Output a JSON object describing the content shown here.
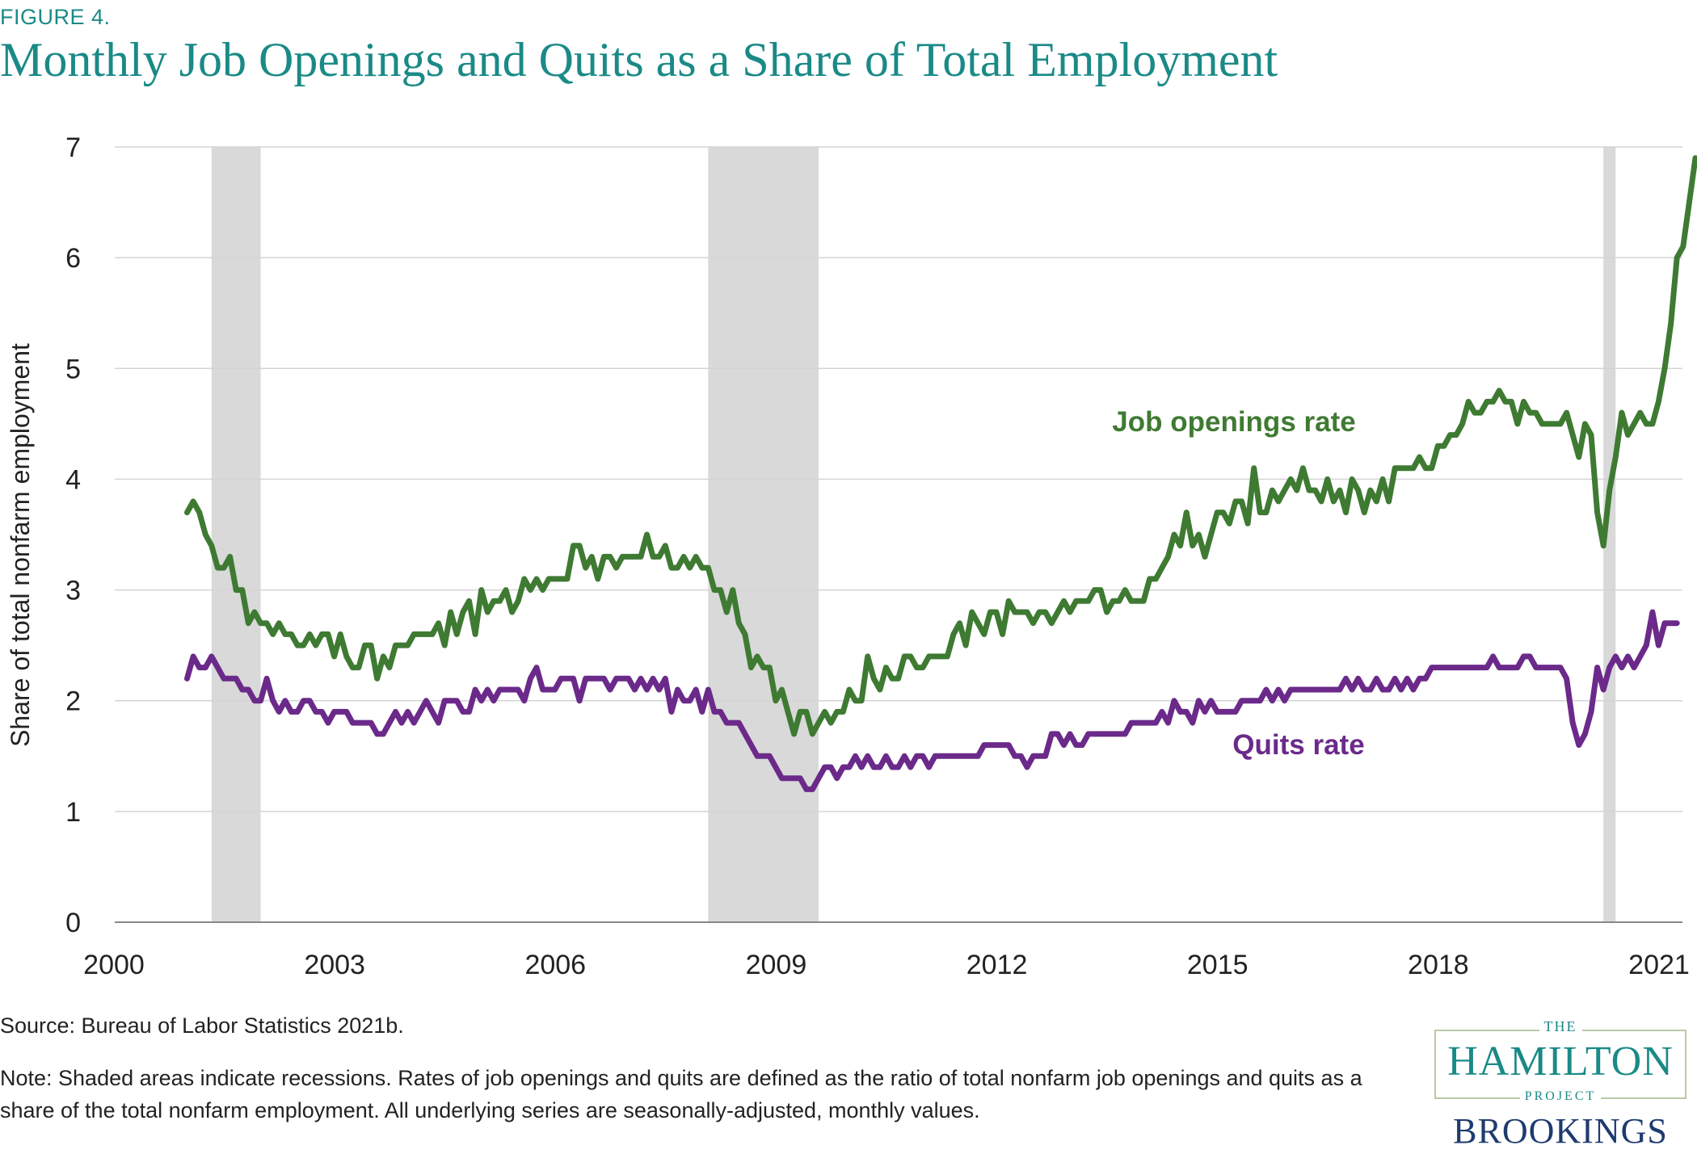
{
  "figure_label": "FIGURE 4.",
  "title": "Monthly Job Openings and Quits as a Share of Total Employment",
  "source": "Source: Bureau of Labor Statistics 2021b.",
  "note": "Note: Shaded areas indicate recessions. Rates of job openings and quits are defined as the ratio of total nonfarm job openings and quits as a share of the total nonfarm employment. All underlying series are seasonally-adjusted, monthly values.",
  "logo": {
    "the": "THE",
    "hamilton": "HAMILTON",
    "project": "PROJECT",
    "brookings": "BROOKINGS"
  },
  "colors": {
    "title": "#1a8a87",
    "job_openings": "#3f7a33",
    "quits": "#6b2a8a",
    "recession": "#d9d9d9",
    "grid": "#d4d4d4"
  },
  "chart_data": {
    "type": "line",
    "title": "Monthly Job Openings and Quits as a Share of Total Employment",
    "xlabel": "",
    "ylabel": "Share of total nonfarm employment",
    "xlim": [
      2000.917,
      2022.25
    ],
    "ylim": [
      0,
      7
    ],
    "x_ticks": [
      2000,
      2003,
      2006,
      2009,
      2012,
      2015,
      2018,
      2021
    ],
    "x_tick_labels": [
      "2000",
      "2003",
      "2006",
      "2009",
      "2012",
      "2015",
      "2018",
      "2021"
    ],
    "y_ticks": [
      0,
      1,
      2,
      3,
      4,
      5,
      6,
      7
    ],
    "y_tick_labels": [
      "0",
      "1",
      "2",
      "3",
      "4",
      "5",
      "6",
      "7"
    ],
    "grid": true,
    "recessions": [
      [
        2001.25,
        2001.917
      ],
      [
        2008.0,
        2009.5
      ],
      [
        2020.167,
        2020.333
      ]
    ],
    "x_start": 2000.917,
    "x_step": 0.0833333,
    "series": [
      {
        "name": "Job openings rate",
        "label": "Job openings rate",
        "values": [
          3.7,
          3.8,
          3.7,
          3.5,
          3.4,
          3.2,
          3.2,
          3.3,
          3.0,
          3.0,
          2.7,
          2.8,
          2.7,
          2.7,
          2.6,
          2.7,
          2.6,
          2.6,
          2.5,
          2.5,
          2.6,
          2.5,
          2.6,
          2.6,
          2.4,
          2.6,
          2.4,
          2.3,
          2.3,
          2.5,
          2.5,
          2.2,
          2.4,
          2.3,
          2.5,
          2.5,
          2.5,
          2.6,
          2.6,
          2.6,
          2.6,
          2.7,
          2.5,
          2.8,
          2.6,
          2.8,
          2.9,
          2.6,
          3.0,
          2.8,
          2.9,
          2.9,
          3.0,
          2.8,
          2.9,
          3.1,
          3.0,
          3.1,
          3.0,
          3.1,
          3.1,
          3.1,
          3.1,
          3.4,
          3.4,
          3.2,
          3.3,
          3.1,
          3.3,
          3.3,
          3.2,
          3.3,
          3.3,
          3.3,
          3.3,
          3.5,
          3.3,
          3.3,
          3.4,
          3.2,
          3.2,
          3.3,
          3.2,
          3.3,
          3.2,
          3.2,
          3.0,
          3.0,
          2.8,
          3.0,
          2.7,
          2.6,
          2.3,
          2.4,
          2.3,
          2.3,
          2.0,
          2.1,
          1.9,
          1.7,
          1.9,
          1.9,
          1.7,
          1.8,
          1.9,
          1.8,
          1.9,
          1.9,
          2.1,
          2.0,
          2.0,
          2.4,
          2.2,
          2.1,
          2.3,
          2.2,
          2.2,
          2.4,
          2.4,
          2.3,
          2.3,
          2.4,
          2.4,
          2.4,
          2.4,
          2.6,
          2.7,
          2.5,
          2.8,
          2.7,
          2.6,
          2.8,
          2.8,
          2.6,
          2.9,
          2.8,
          2.8,
          2.8,
          2.7,
          2.8,
          2.8,
          2.7,
          2.8,
          2.9,
          2.8,
          2.9,
          2.9,
          2.9,
          3.0,
          3.0,
          2.8,
          2.9,
          2.9,
          3.0,
          2.9,
          2.9,
          2.9,
          3.1,
          3.1,
          3.2,
          3.3,
          3.5,
          3.4,
          3.7,
          3.4,
          3.5,
          3.3,
          3.5,
          3.7,
          3.7,
          3.6,
          3.8,
          3.8,
          3.6,
          4.1,
          3.7,
          3.7,
          3.9,
          3.8,
          3.9,
          4.0,
          3.9,
          4.1,
          3.9,
          3.9,
          3.8,
          4.0,
          3.8,
          3.9,
          3.7,
          4.0,
          3.9,
          3.7,
          3.9,
          3.8,
          4.0,
          3.8,
          4.1,
          4.1,
          4.1,
          4.1,
          4.2,
          4.1,
          4.1,
          4.3,
          4.3,
          4.4,
          4.4,
          4.5,
          4.7,
          4.6,
          4.6,
          4.7,
          4.7,
          4.8,
          4.7,
          4.7,
          4.5,
          4.7,
          4.6,
          4.6,
          4.5,
          4.5,
          4.5,
          4.5,
          4.6,
          4.4,
          4.2,
          4.5,
          4.4,
          3.7,
          3.4,
          3.9,
          4.2,
          4.6,
          4.4,
          4.5,
          4.6,
          4.5,
          4.5,
          4.7,
          5.0,
          5.4,
          6.0,
          6.1,
          6.5,
          6.9
        ]
      },
      {
        "name": "Quits rate",
        "label": "Quits rate",
        "values": [
          2.2,
          2.4,
          2.3,
          2.3,
          2.4,
          2.3,
          2.2,
          2.2,
          2.2,
          2.1,
          2.1,
          2.0,
          2.0,
          2.2,
          2.0,
          1.9,
          2.0,
          1.9,
          1.9,
          2.0,
          2.0,
          1.9,
          1.9,
          1.8,
          1.9,
          1.9,
          1.9,
          1.8,
          1.8,
          1.8,
          1.8,
          1.7,
          1.7,
          1.8,
          1.9,
          1.8,
          1.9,
          1.8,
          1.9,
          2.0,
          1.9,
          1.8,
          2.0,
          2.0,
          2.0,
          1.9,
          1.9,
          2.1,
          2.0,
          2.1,
          2.0,
          2.1,
          2.1,
          2.1,
          2.1,
          2.0,
          2.2,
          2.3,
          2.1,
          2.1,
          2.1,
          2.2,
          2.2,
          2.2,
          2.0,
          2.2,
          2.2,
          2.2,
          2.2,
          2.1,
          2.2,
          2.2,
          2.2,
          2.1,
          2.2,
          2.1,
          2.2,
          2.1,
          2.2,
          1.9,
          2.1,
          2.0,
          2.0,
          2.1,
          1.9,
          2.1,
          1.9,
          1.9,
          1.8,
          1.8,
          1.8,
          1.7,
          1.6,
          1.5,
          1.5,
          1.5,
          1.4,
          1.3,
          1.3,
          1.3,
          1.3,
          1.2,
          1.2,
          1.3,
          1.4,
          1.4,
          1.3,
          1.4,
          1.4,
          1.5,
          1.4,
          1.5,
          1.4,
          1.4,
          1.5,
          1.4,
          1.4,
          1.5,
          1.4,
          1.5,
          1.5,
          1.4,
          1.5,
          1.5,
          1.5,
          1.5,
          1.5,
          1.5,
          1.5,
          1.5,
          1.6,
          1.6,
          1.6,
          1.6,
          1.6,
          1.5,
          1.5,
          1.4,
          1.5,
          1.5,
          1.5,
          1.7,
          1.7,
          1.6,
          1.7,
          1.6,
          1.6,
          1.7,
          1.7,
          1.7,
          1.7,
          1.7,
          1.7,
          1.7,
          1.8,
          1.8,
          1.8,
          1.8,
          1.8,
          1.9,
          1.8,
          2.0,
          1.9,
          1.9,
          1.8,
          2.0,
          1.9,
          2.0,
          1.9,
          1.9,
          1.9,
          1.9,
          2.0,
          2.0,
          2.0,
          2.0,
          2.1,
          2.0,
          2.1,
          2.0,
          2.1,
          2.1,
          2.1,
          2.1,
          2.1,
          2.1,
          2.1,
          2.1,
          2.1,
          2.2,
          2.1,
          2.2,
          2.1,
          2.1,
          2.2,
          2.1,
          2.1,
          2.2,
          2.1,
          2.2,
          2.1,
          2.2,
          2.2,
          2.3,
          2.3,
          2.3,
          2.3,
          2.3,
          2.3,
          2.3,
          2.3,
          2.3,
          2.3,
          2.4,
          2.3,
          2.3,
          2.3,
          2.3,
          2.4,
          2.4,
          2.3,
          2.3,
          2.3,
          2.3,
          2.3,
          2.2,
          1.8,
          1.6,
          1.7,
          1.9,
          2.3,
          2.1,
          2.3,
          2.4,
          2.3,
          2.4,
          2.3,
          2.4,
          2.5,
          2.8,
          2.5,
          2.7,
          2.7,
          2.7
        ]
      }
    ]
  }
}
